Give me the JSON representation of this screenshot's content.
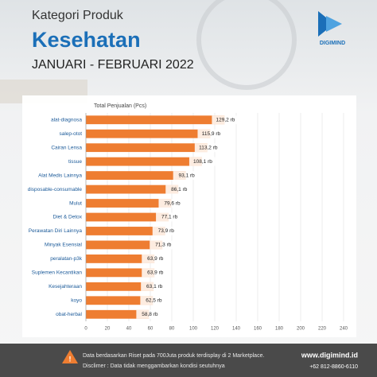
{
  "brand": "DIGIMIND",
  "footer": {
    "note": "Data berdasarkan Riset pada 700Juta produk terdisplay di 2 Marketplace.",
    "disclaimer": "Disclimer : Data tidak menggambarkan kondisi seutuhnya",
    "website": "www.digimind.id",
    "phone": "+62 812-8860-6110"
  },
  "chart_data": {
    "type": "bar",
    "orientation": "horizontal",
    "kicker": "Kategori Produk",
    "title": "Kesehatan",
    "subtitle": "JANUARI - FEBRUARI 2022",
    "x_label": "Total Penjualan (Pcs)",
    "categories": [
      "alat-diagnosa",
      "salep-otot",
      "Cairan Lensa",
      "tissue",
      "Alat Medis Lainnya",
      "disposable-consumable",
      "Mulut",
      "Diet & Detox",
      "Perawatan Diri Lainnya",
      "Minyak Esensial",
      "peralatan-p3k",
      "Suplemen Kecantikan",
      "Kesejahteraan",
      "koyo",
      "obat-herbal"
    ],
    "values": [
      129.2,
      115.9,
      113.2,
      108.1,
      93.1,
      86.1,
      79.6,
      77.1,
      73.9,
      71.3,
      63.9,
      63.9,
      63.1,
      62.5,
      58.8
    ],
    "value_labels": [
      "129,2 rb",
      "115,9 rb",
      "113,2 rb",
      "108,1 rb",
      "93,1 rb",
      "86,1 rb",
      "79,6 rb",
      "77,1 rb",
      "73,9 rb",
      "71,3 rb",
      "63,9 rb",
      "63,9 rb",
      "63,1 rb",
      "62,5 rb",
      "58,8 rb"
    ],
    "color": "#ee7d31",
    "xlim": [
      0,
      240
    ],
    "xticks": [
      0,
      20,
      40,
      60,
      80,
      100,
      120,
      140,
      160,
      180,
      200,
      220,
      240
    ],
    "grid": true
  }
}
